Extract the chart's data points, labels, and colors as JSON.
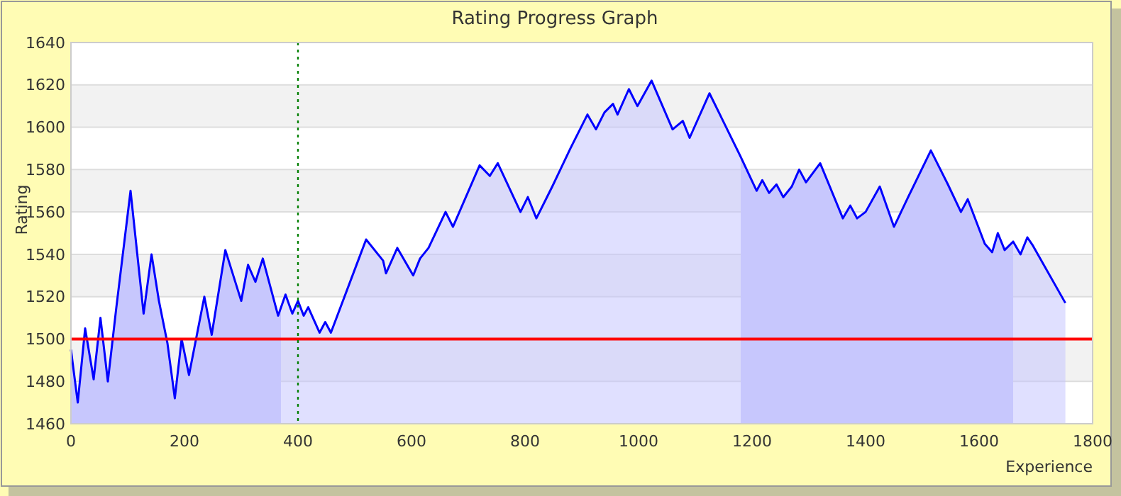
{
  "chart_data": {
    "type": "area",
    "title": "Rating Progress Graph",
    "xlabel": "Experience",
    "ylabel": "Rating",
    "x": [
      0,
      12,
      25,
      40,
      52,
      65,
      80,
      105,
      128,
      142,
      155,
      170,
      183,
      195,
      208,
      235,
      248,
      272,
      300,
      312,
      325,
      338,
      365,
      378,
      390,
      400,
      410,
      418,
      438,
      448,
      458,
      520,
      550,
      555,
      575,
      603,
      615,
      630,
      660,
      673,
      720,
      738,
      752,
      792,
      805,
      820,
      848,
      880,
      910,
      925,
      940,
      955,
      963,
      983,
      998,
      1023,
      1060,
      1078,
      1090,
      1125,
      1180,
      1208,
      1218,
      1230,
      1243,
      1255,
      1270,
      1283,
      1295,
      1320,
      1360,
      1373,
      1385,
      1400,
      1425,
      1450,
      1475,
      1515,
      1545,
      1568,
      1580,
      1610,
      1623,
      1633,
      1645,
      1660,
      1673,
      1685,
      1695,
      1752
    ],
    "series": [
      {
        "color": "#0000ff",
        "values": [
          1495,
          1470,
          1505,
          1481,
          1510,
          1480,
          1515,
          1570,
          1512,
          1540,
          1518,
          1498,
          1472,
          1500,
          1483,
          1520,
          1502,
          1542,
          1518,
          1535,
          1527,
          1538,
          1511,
          1521,
          1512,
          1518,
          1511,
          1515,
          1503,
          1508,
          1503,
          1547,
          1537,
          1531,
          1543,
          1530,
          1538,
          1543,
          1560,
          1553,
          1582,
          1577,
          1583,
          1560,
          1567,
          1557,
          1572,
          1590,
          1606,
          1599,
          1607,
          1611,
          1606,
          1618,
          1610,
          1622,
          1599,
          1603,
          1595,
          1616,
          1586,
          1570,
          1575,
          1569,
          1573,
          1567,
          1572,
          1580,
          1574,
          1583,
          1557,
          1563,
          1557,
          1560,
          1572,
          1553,
          1567,
          1589,
          1573,
          1560,
          1566,
          1545,
          1541,
          1550,
          1542,
          1546,
          1540,
          1548,
          1544,
          1517
        ]
      }
    ],
    "xlim": [
      0,
      1800
    ],
    "xticks": [
      0,
      200,
      400,
      600,
      800,
      1000,
      1200,
      1400,
      1600,
      1800
    ],
    "ylim": [
      1460,
      1640
    ],
    "yticks": [
      1460,
      1480,
      1500,
      1520,
      1540,
      1560,
      1580,
      1600,
      1620,
      1640
    ],
    "grid": "y",
    "ref_lines": [
      {
        "axis": "y",
        "value": 1500,
        "color": "#ff0000",
        "line_style": "solid"
      },
      {
        "axis": "x",
        "value": 400,
        "color": "#008000",
        "line_style": "dotted"
      }
    ],
    "bands": [
      {
        "axis": "x",
        "from": 0,
        "to": 370,
        "color": "#ccccfa"
      },
      {
        "axis": "x",
        "from": 1180,
        "to": 1660,
        "color": "#ccccfa"
      }
    ]
  }
}
